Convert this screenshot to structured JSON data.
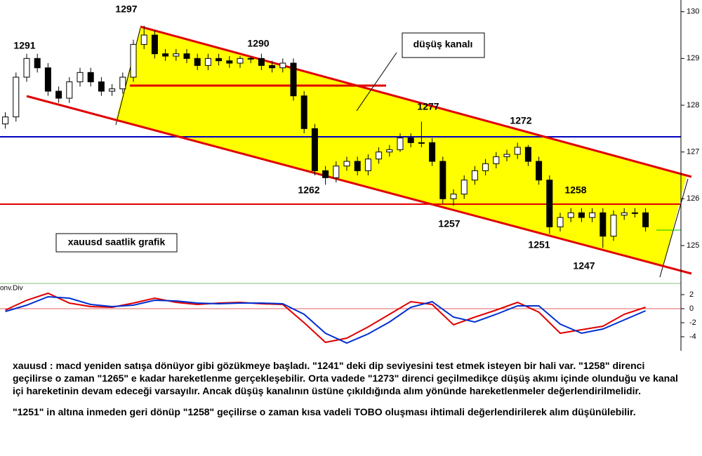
{
  "chart_data": [
    {
      "type": "candlestick",
      "open": [
        127.6,
        127.75,
        128.6,
        129.0,
        128.8,
        128.3,
        128.15,
        128.5,
        128.7,
        128.5,
        128.3,
        128.35,
        128.6,
        129.3,
        129.5,
        129.1,
        129.05,
        129.1,
        129.0,
        128.85,
        129.0,
        128.95,
        128.9,
        129.0,
        129.0,
        128.85,
        128.8,
        128.9,
        128.2,
        127.5,
        126.6,
        126.45,
        126.7,
        126.8,
        126.6,
        126.85,
        127.0,
        127.05,
        127.3,
        127.2,
        127.2,
        126.8,
        126.0,
        126.1,
        126.4,
        126.6,
        126.75,
        126.9,
        126.95,
        127.1,
        126.8,
        126.4,
        125.4,
        125.6,
        125.7,
        125.6,
        125.7,
        125.2,
        125.65,
        125.7,
        125.7
      ],
      "high": [
        127.85,
        128.7,
        129.1,
        129.1,
        128.9,
        128.4,
        128.6,
        128.8,
        128.8,
        128.6,
        128.45,
        128.7,
        129.4,
        129.7,
        129.6,
        129.2,
        129.2,
        129.2,
        129.1,
        129.1,
        129.1,
        129.05,
        129.05,
        129.05,
        129.1,
        128.95,
        129.0,
        129.0,
        128.3,
        127.6,
        126.7,
        126.8,
        126.9,
        126.9,
        126.95,
        127.1,
        127.15,
        127.4,
        127.4,
        127.65,
        127.3,
        126.9,
        126.2,
        126.5,
        126.7,
        126.85,
        127.0,
        127.05,
        127.2,
        127.15,
        126.9,
        126.5,
        125.7,
        125.8,
        125.8,
        125.8,
        125.8,
        125.75,
        125.8,
        125.8,
        125.8
      ],
      "low": [
        127.5,
        127.65,
        128.5,
        128.7,
        128.2,
        128.05,
        128.05,
        128.4,
        128.4,
        128.2,
        128.2,
        128.25,
        128.5,
        129.2,
        129.0,
        128.95,
        128.95,
        128.9,
        128.75,
        128.75,
        128.85,
        128.8,
        128.8,
        128.9,
        128.75,
        128.7,
        128.7,
        128.1,
        127.4,
        126.5,
        126.3,
        126.35,
        126.6,
        126.5,
        126.5,
        126.75,
        126.9,
        127.0,
        127.1,
        127.1,
        126.7,
        125.9,
        125.85,
        126.0,
        126.3,
        126.5,
        126.65,
        126.8,
        126.85,
        126.7,
        126.3,
        125.25,
        125.3,
        125.5,
        125.5,
        125.5,
        124.95,
        125.1,
        125.55,
        125.6,
        125.3
      ],
      "close": [
        127.75,
        128.6,
        129.0,
        128.8,
        128.3,
        128.15,
        128.5,
        128.7,
        128.5,
        128.3,
        128.35,
        128.6,
        129.3,
        129.5,
        129.1,
        129.05,
        129.1,
        129.0,
        128.85,
        129.0,
        128.95,
        128.9,
        129.0,
        129.0,
        128.85,
        128.8,
        128.9,
        128.2,
        127.5,
        126.6,
        126.45,
        126.7,
        126.8,
        126.6,
        126.85,
        127.0,
        127.05,
        127.3,
        127.2,
        127.2,
        126.8,
        126.0,
        126.1,
        126.4,
        126.6,
        126.75,
        126.9,
        126.95,
        127.1,
        126.8,
        126.4,
        125.4,
        125.6,
        125.7,
        125.6,
        125.7,
        125.2,
        125.65,
        125.7,
        125.7,
        125.4
      ],
      "ylim": [
        124.25,
        130.25
      ],
      "yticks": [
        125,
        126,
        127,
        128,
        129,
        130
      ],
      "annotations": [
        "1297",
        "1291",
        "1290",
        "1277",
        "1272",
        "1262",
        "1257",
        "1258",
        "1251",
        "1247",
        "düşüş kanalı",
        "xauusd saatlik grafik"
      ]
    },
    {
      "type": "line",
      "title": "onv.Div",
      "series": [
        {
          "color": "#e00000",
          "values": [
            -0.2,
            1.2,
            2.2,
            0.8,
            0.3,
            0.2,
            0.8,
            1.5,
            0.9,
            0.6,
            0.8,
            0.9,
            0.7,
            0.6,
            -2.0,
            -4.8,
            -4.2,
            -2.6,
            -0.8,
            1.0,
            0.6,
            -2.3,
            -1.2,
            -0.2,
            0.9,
            -0.5,
            -3.5,
            -3.0,
            -2.5,
            -0.8,
            0.2
          ]
        },
        {
          "color": "#0030d0",
          "values": [
            -0.4,
            0.5,
            1.7,
            1.5,
            0.6,
            0.3,
            0.5,
            1.2,
            1.1,
            0.8,
            0.7,
            0.8,
            0.8,
            0.7,
            -0.8,
            -3.5,
            -4.9,
            -3.6,
            -1.9,
            0.2,
            1.0,
            -1.2,
            -1.9,
            -0.8,
            0.4,
            0.4,
            -2.2,
            -3.5,
            -2.9,
            -1.6,
            -0.3
          ]
        }
      ],
      "ylim": [
        -5.5,
        3.5
      ],
      "yticks": [
        2,
        0,
        -2,
        -4
      ]
    }
  ],
  "text": [
    "xauusd : macd yeniden satışa dönüyor gibi gözükmeye başladı. \"1241\" deki dip seviyesini test etmek isteyen bir hali var. \"1258\" direnci geçilirse o zaman \"1265\" e kadar hareketlenme gerçekleşebilir. Orta vadede \"1273\" direnci geçilmedikçe düşüş akımı içinde olunduğu ve kanal içi hareketinin devam edeceği varsayılır. Ancak düşüş kanalının üstüne çıkıldığında alım yönünde hareketlenmeler değerlendirilmelidir.",
    "\"1251\" in altına inmeden geri dönüp \"1258\" geçilirse o zaman kısa vadeli TOBO oluşması ihtimali değerlendirilerek alım düşünülebilir."
  ]
}
